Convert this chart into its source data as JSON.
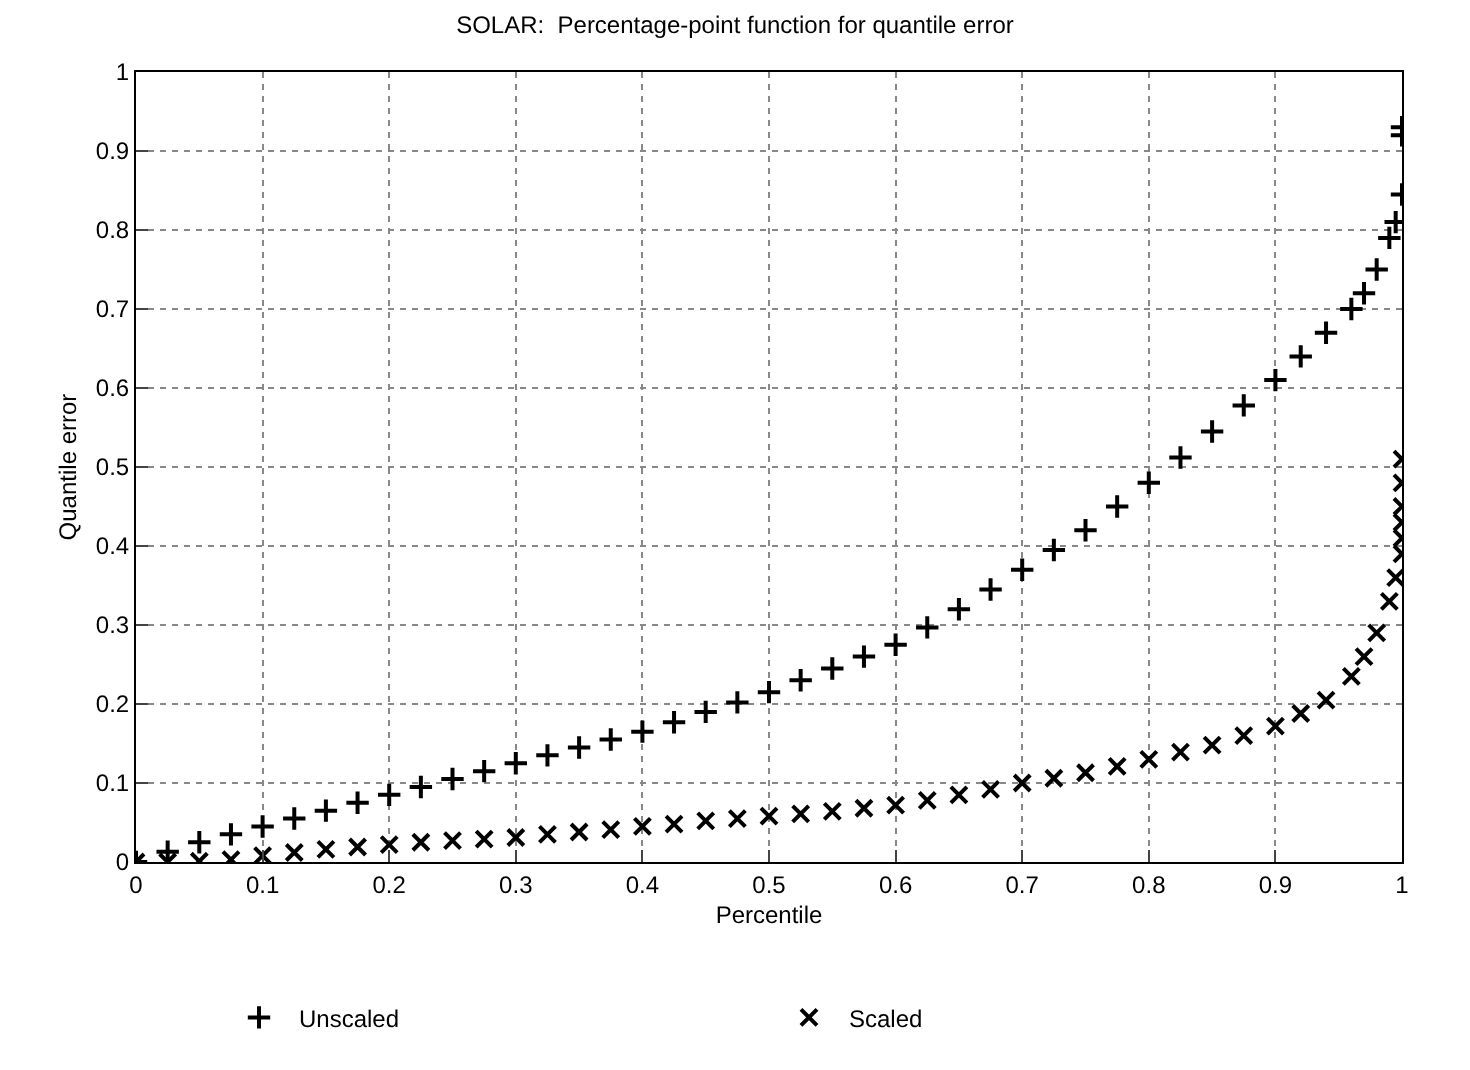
{
  "chart_data": {
    "type": "scatter",
    "title": "SOLAR:  Percentage-point function for quantile error",
    "xlabel": "Percentile",
    "ylabel": "Quantile error",
    "xlim": [
      0,
      1
    ],
    "xticks": [
      0,
      0.1,
      0.2,
      0.3,
      0.4,
      0.5,
      0.6,
      0.7,
      0.8,
      0.9,
      1
    ],
    "ylim": [
      0,
      1
    ],
    "yticks": [
      0,
      0.1,
      0.2,
      0.3,
      0.4,
      0.5,
      0.6,
      0.7,
      0.8,
      0.9,
      1
    ],
    "grid": true,
    "legend": "bottom",
    "series": [
      {
        "name": "Unscaled",
        "color": "#000000",
        "marker": "cross",
        "x": [
          0,
          0.025,
          0.05,
          0.075,
          0.1,
          0.125,
          0.15,
          0.175,
          0.2,
          0.225,
          0.25,
          0.275,
          0.3,
          0.325,
          0.35,
          0.375,
          0.4,
          0.425,
          0.45,
          0.475,
          0.5,
          0.525,
          0.55,
          0.575,
          0.6,
          0.625,
          0.65,
          0.675,
          0.7,
          0.725,
          0.75,
          0.775,
          0.8,
          0.825,
          0.85,
          0.875,
          0.9,
          0.92,
          0.94,
          0.96,
          0.97,
          0.98,
          0.99,
          0.995,
          1,
          1,
          1
        ],
        "values": [
          0,
          0.013,
          0.025,
          0.035,
          0.045,
          0.055,
          0.065,
          0.075,
          0.085,
          0.095,
          0.105,
          0.115,
          0.125,
          0.135,
          0.145,
          0.155,
          0.165,
          0.177,
          0.19,
          0.202,
          0.215,
          0.23,
          0.245,
          0.26,
          0.275,
          0.297,
          0.32,
          0.345,
          0.37,
          0.395,
          0.42,
          0.45,
          0.48,
          0.512,
          0.545,
          0.578,
          0.61,
          0.64,
          0.67,
          0.7,
          0.72,
          0.75,
          0.79,
          0.81,
          0.845,
          0.92,
          0.93
        ]
      },
      {
        "name": "Scaled",
        "color": "#000000",
        "marker": "x",
        "x": [
          0,
          0.025,
          0.05,
          0.075,
          0.1,
          0.125,
          0.15,
          0.175,
          0.2,
          0.225,
          0.25,
          0.275,
          0.3,
          0.325,
          0.35,
          0.375,
          0.4,
          0.425,
          0.45,
          0.475,
          0.5,
          0.525,
          0.55,
          0.575,
          0.6,
          0.625,
          0.65,
          0.675,
          0.7,
          0.725,
          0.75,
          0.775,
          0.8,
          0.825,
          0.85,
          0.875,
          0.9,
          0.92,
          0.94,
          0.96,
          0.97,
          0.98,
          0.99,
          0.995,
          1,
          1,
          1,
          1,
          1,
          1
        ],
        "values": [
          0,
          0,
          0.001,
          0.003,
          0.008,
          0.012,
          0.016,
          0.019,
          0.022,
          0.025,
          0.027,
          0.029,
          0.031,
          0.035,
          0.038,
          0.041,
          0.045,
          0.048,
          0.052,
          0.055,
          0.058,
          0.061,
          0.064,
          0.068,
          0.072,
          0.078,
          0.085,
          0.092,
          0.1,
          0.106,
          0.113,
          0.121,
          0.13,
          0.139,
          0.148,
          0.16,
          0.172,
          0.188,
          0.205,
          0.235,
          0.26,
          0.29,
          0.33,
          0.36,
          0.39,
          0.41,
          0.43,
          0.45,
          0.48,
          0.51
        ]
      }
    ]
  }
}
